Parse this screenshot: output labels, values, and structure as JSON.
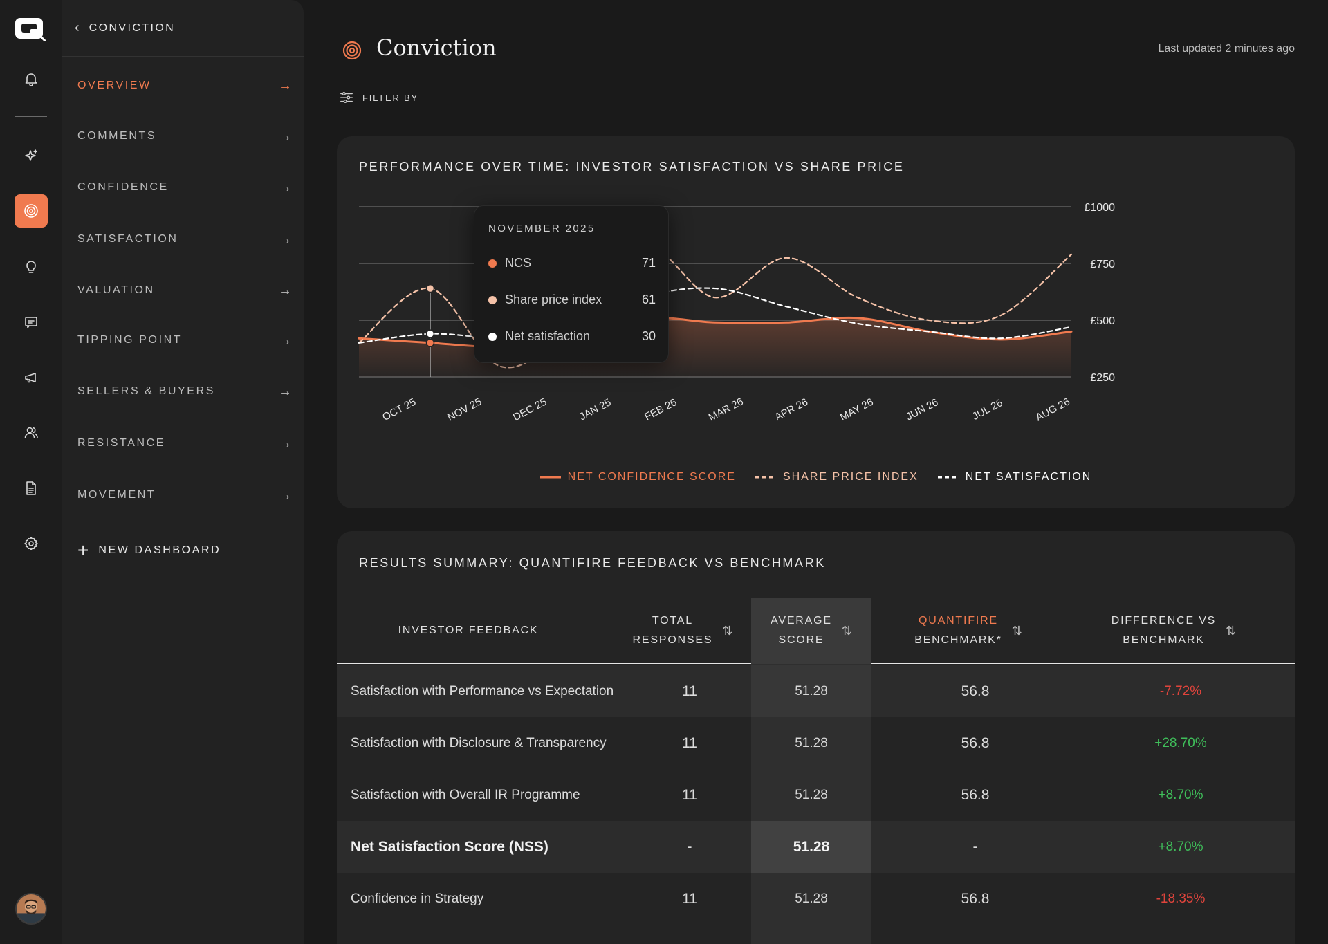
{
  "app": {
    "title": "Conviction"
  },
  "rail": {
    "items": [
      {
        "name": "notifications",
        "icon": "bell-icon"
      },
      {
        "name": "ai",
        "icon": "sparkle-icon"
      },
      {
        "name": "conviction",
        "icon": "target-icon",
        "active": true
      },
      {
        "name": "insights",
        "icon": "lightbulb-icon"
      },
      {
        "name": "messages",
        "icon": "chat-icon"
      },
      {
        "name": "campaigns",
        "icon": "megaphone-icon"
      },
      {
        "name": "people",
        "icon": "users-icon"
      },
      {
        "name": "reports",
        "icon": "document-icon"
      },
      {
        "name": "settings",
        "icon": "gear-icon"
      }
    ]
  },
  "nav": {
    "back_label": "CONVICTION",
    "items": [
      {
        "label": "OVERVIEW",
        "active": true
      },
      {
        "label": "COMMENTS"
      },
      {
        "label": "CONFIDENCE"
      },
      {
        "label": "SATISFACTION"
      },
      {
        "label": "VALUATION"
      },
      {
        "label": "TIPPING POINT"
      },
      {
        "label": "SELLERS & BUYERS"
      },
      {
        "label": "RESISTANCE"
      },
      {
        "label": "MOVEMENT"
      }
    ],
    "new_dashboard": "NEW DASHBOARD"
  },
  "header": {
    "title": "Conviction",
    "last_updated": "Last updated 2 minutes ago",
    "filter_label": "FILTER BY"
  },
  "colors": {
    "accent": "#f07a4f",
    "peach": "#f5c2a8",
    "white": "#ffffff",
    "negative": "#e0443c",
    "positive": "#3fbf5a"
  },
  "chart_data": {
    "type": "line",
    "title": "PERFORMANCE OVER TIME: INVESTOR SATISFACTION VS SHARE PRICE",
    "x": [
      "OCT 25",
      "NOV 25",
      "DEC 25",
      "JAN 25",
      "FEB 26",
      "MAR 26",
      "APR 26",
      "MAY 26",
      "JUN 26",
      "JUL 26",
      "AUG 26"
    ],
    "y_ticks": [
      "£250",
      "£500",
      "£750",
      "£1000"
    ],
    "ylim": [
      250,
      1000
    ],
    "grid": true,
    "legend_position": "bottom",
    "series": [
      {
        "name": "NET CONFIDENCE SCORE",
        "style": "solid",
        "color": "#f07a4f",
        "fill": true,
        "values": [
          420,
          400,
          380,
          390,
          505,
          490,
          490,
          510,
          450,
          415,
          450
        ]
      },
      {
        "name": "SHARE PRICE INDEX",
        "style": "dashed",
        "color": "#f5c2a8",
        "values": [
          400,
          640,
          295,
          480,
          825,
          600,
          775,
          600,
          500,
          520,
          790
        ]
      },
      {
        "name": "NET SATISFACTION",
        "style": "dashed",
        "color": "#ffffff",
        "values": [
          400,
          440,
          420,
          440,
          600,
          640,
          560,
          485,
          450,
          420,
          470
        ]
      }
    ],
    "tooltip": {
      "title": "NOVEMBER 2025",
      "rows": [
        {
          "name": "NCS",
          "value": "71",
          "color": "#f07a4f"
        },
        {
          "name": "Share price index",
          "value": "61",
          "color": "#f5c2a8"
        },
        {
          "name": "Net satisfaction",
          "value": "30",
          "color": "#ffffff"
        }
      ]
    }
  },
  "table": {
    "title": "RESULTS SUMMARY: QUANTIFIRE FEEDBACK VS BENCHMARK",
    "headers": {
      "feedback": "INVESTOR FEEDBACK",
      "total_1": "TOTAL",
      "total_2": "RESPONSES",
      "avg_1": "AVERAGE",
      "avg_2": "SCORE",
      "bench_1": "QUANTIFIRE",
      "bench_2": "BENCHMARK*",
      "diff_1": "DIFFERENCE VS",
      "diff_2": "BENCHMARK",
      "sort_glyph": "⇅"
    },
    "rows": [
      {
        "label": "Satisfaction with Performance vs Expectation",
        "total": "11",
        "avg": "51.28",
        "bench": "56.8",
        "diff": "-7.72%",
        "dir": "neg"
      },
      {
        "label": "Satisfaction with Disclosure & Transparency",
        "total": "11",
        "avg": "51.28",
        "bench": "56.8",
        "diff": "+28.70%",
        "dir": "pos"
      },
      {
        "label": "Satisfaction with Overall IR Programme",
        "total": "11",
        "avg": "51.28",
        "bench": "56.8",
        "diff": "+8.70%",
        "dir": "pos"
      },
      {
        "label": "Net Satisfaction Score (NSS)",
        "total": "-",
        "avg": "51.28",
        "bench": "-",
        "diff": "+8.70%",
        "dir": "pos",
        "bold": true
      },
      {
        "label": "Confidence in Strategy",
        "total": "11",
        "avg": "51.28",
        "bench": "56.8",
        "diff": "-18.35%",
        "dir": "neg"
      }
    ]
  }
}
